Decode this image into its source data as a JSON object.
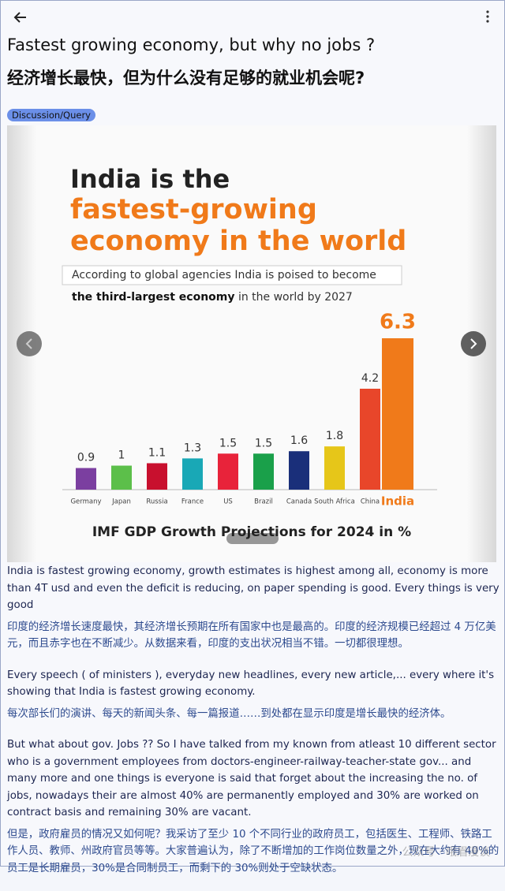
{
  "header": {
    "title_en": "Fastest growing economy, but why no jobs ?",
    "title_zh": "经济增长最快，但为什么没有足够的就业机会呢?"
  },
  "tag": "Discussion/Query",
  "chart_data": {
    "type": "bar",
    "title_lines": [
      "India is the",
      "fastest-growing",
      "economy in the world"
    ],
    "subtitle": "According to global agencies India is poised to become",
    "subtitle_bold": "the third-largest economy",
    "subtitle_rest": " in the world by 2027",
    "caption": "IMF GDP Growth Projections for 2024 in %",
    "categories": [
      "Germany",
      "Japan",
      "Russia",
      "France",
      "US",
      "Brazil",
      "Canada",
      "South Africa",
      "China",
      "India"
    ],
    "values": [
      0.9,
      1,
      1.1,
      1.3,
      1.5,
      1.5,
      1.6,
      1.8,
      4.2,
      6.3
    ],
    "colors": [
      "#7b3fa0",
      "#5cbf4a",
      "#c8102e",
      "#19a8b6",
      "#e8233a",
      "#1aa04a",
      "#1a2f7a",
      "#e6c619",
      "#e8462a",
      "#f07a1a"
    ]
  },
  "paragraphs": [
    {
      "en": "India is fastest growing economy, growth estimates is highest among all, economy is more than 4T usd and even the deficit is reducing, on paper spending is good. Every things is very good",
      "zh": "印度的经济增长速度最快，其经济增长预期在所有国家中也是最高的。印度的经济规模已经超过 4 万亿美元，而且赤字也在不断减少。从数据来看，印度的支出状况相当不错。一切都很理想。"
    },
    {
      "en": "Every speech ( of ministers ), everyday new headlines, every new article,... every where it's showing that India is fastest growing economy.",
      "zh": "每次部长们的演讲、每天的新闻头条、每一篇报道……到处都在显示印度是增长最快的经济体。"
    },
    {
      "en": "But what about gov. Jobs ?? So I have talked from my known from atleast 10 different sector who is a government employees from doctors-engineer-railway-teacher-state gov... and many more and one things is everyone is said that forget about the increasing the no. of jobs, nowadays their are almost 40% are permanently employed and 30% are worked on contract basis and remaining 30% are vacant.",
      "zh": "但是，政府雇员的情况又如何呢？我采访了至少 10 个不同行业的政府员工，包括医生、工程师、铁路工作人员、教师、州政府官员等等。大家普遍认为，除了不断增加的工作岗位数量之外，现在大约有 40%的员工是长期雇员，30%是合同制员工，而剩下的 30%则处于空缺状态。"
    }
  ],
  "watermark": "公众号 · 峨眉漫谈"
}
